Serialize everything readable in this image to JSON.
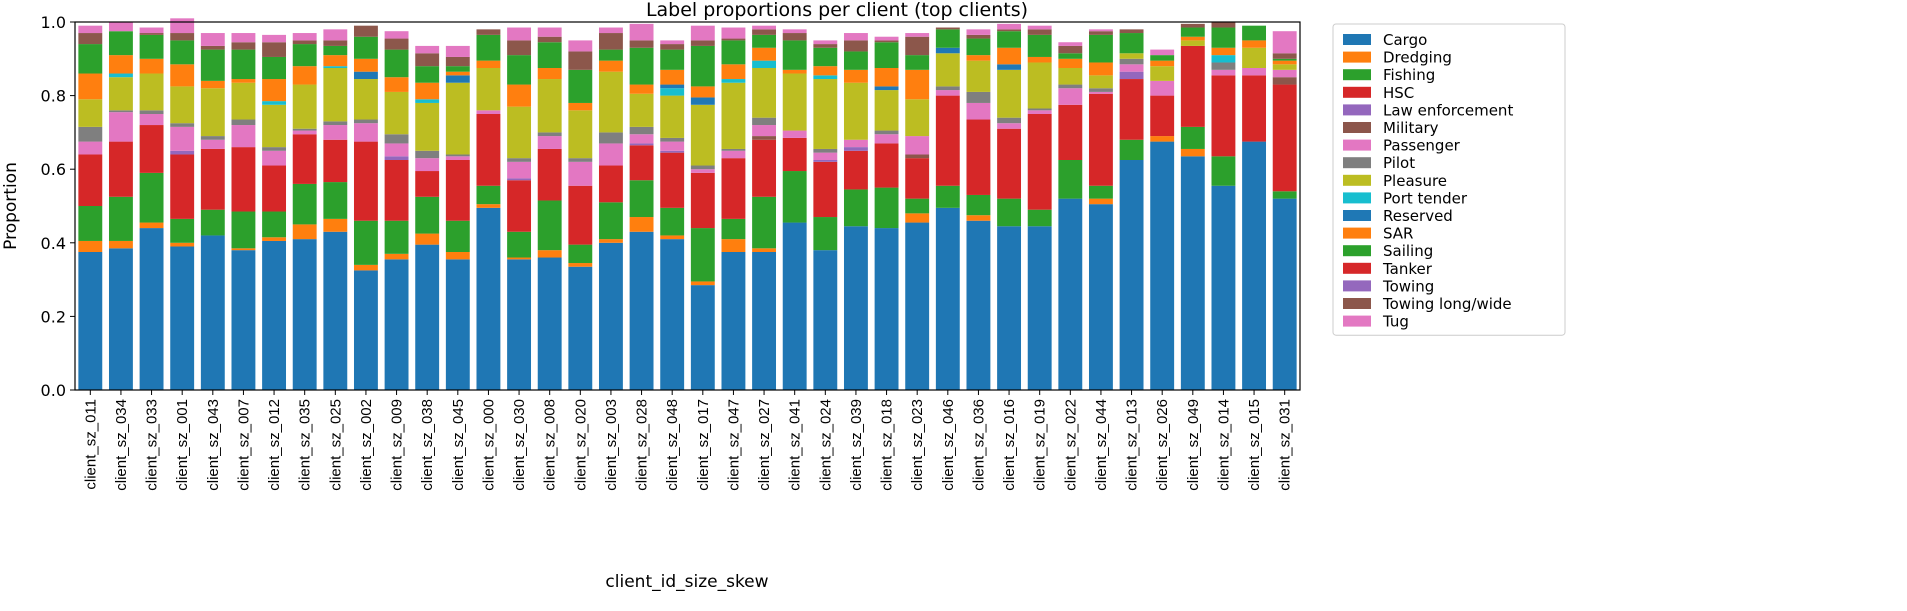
{
  "chart_data": {
    "type": "bar",
    "stacked": true,
    "title": "Label proportions per client (top clients)",
    "xlabel": "client_id_size_skew",
    "ylabel": "Proportion",
    "ylim": [
      0,
      1.0
    ],
    "yticks": [
      "0.0",
      "0.2",
      "0.4",
      "0.6",
      "0.8",
      "1.0"
    ],
    "legend_placement": "outside-right",
    "grid": false,
    "categories": [
      "client_sz_011",
      "client_sz_034",
      "client_sz_033",
      "client_sz_001",
      "client_sz_043",
      "client_sz_007",
      "client_sz_012",
      "client_sz_035",
      "client_sz_025",
      "client_sz_002",
      "client_sz_009",
      "client_sz_038",
      "client_sz_045",
      "client_sz_000",
      "client_sz_030",
      "client_sz_008",
      "client_sz_020",
      "client_sz_003",
      "client_sz_028",
      "client_sz_048",
      "client_sz_017",
      "client_sz_047",
      "client_sz_027",
      "client_sz_041",
      "client_sz_024",
      "client_sz_039",
      "client_sz_018",
      "client_sz_023",
      "client_sz_046",
      "client_sz_036",
      "client_sz_016",
      "client_sz_019",
      "client_sz_022",
      "client_sz_044",
      "client_sz_013",
      "client_sz_026",
      "client_sz_049",
      "client_sz_014",
      "client_sz_015",
      "client_sz_031"
    ],
    "series": [
      {
        "name": "Cargo",
        "color": "#1f77b4",
        "values": [
          0.375,
          0.385,
          0.44,
          0.39,
          0.42,
          0.38,
          0.405,
          0.41,
          0.43,
          0.325,
          0.355,
          0.395,
          0.355,
          0.495,
          0.355,
          0.36,
          0.335,
          0.4,
          0.43,
          0.41,
          0.285,
          0.375,
          0.375,
          0.455,
          0.38,
          0.445,
          0.44,
          0.455,
          0.495,
          0.46,
          0.445,
          0.445,
          0.52,
          0.505,
          0.625,
          0.675,
          0.635,
          0.555,
          0.675,
          0.52
        ]
      },
      {
        "name": "Dredging",
        "color": "#ff7f0e",
        "values": [
          0.03,
          0.02,
          0.015,
          0.01,
          0,
          0.005,
          0.01,
          0.04,
          0.035,
          0.015,
          0.015,
          0.03,
          0.02,
          0.01,
          0.005,
          0.02,
          0.01,
          0.01,
          0.04,
          0.01,
          0.01,
          0.035,
          0.01,
          0,
          0,
          0,
          0,
          0.025,
          0,
          0.015,
          0,
          0,
          0,
          0.015,
          0,
          0.015,
          0.02,
          0,
          0,
          0
        ]
      },
      {
        "name": "Fishing",
        "color": "#2ca02c",
        "values": [
          0.095,
          0.12,
          0.135,
          0.065,
          0.07,
          0.1,
          0.07,
          0.11,
          0.1,
          0.12,
          0.09,
          0.1,
          0.085,
          0.05,
          0.07,
          0.135,
          0.05,
          0.1,
          0.1,
          0.075,
          0.145,
          0.055,
          0.14,
          0.14,
          0.09,
          0.1,
          0.11,
          0.04,
          0.06,
          0.055,
          0.075,
          0.045,
          0.105,
          0.035,
          0.055,
          0,
          0.06,
          0.08,
          0,
          0.02
        ]
      },
      {
        "name": "HSC",
        "color": "#d62728",
        "values": [
          0.14,
          0.15,
          0.13,
          0.175,
          0.165,
          0.175,
          0.125,
          0.135,
          0.115,
          0.215,
          0.165,
          0.07,
          0.165,
          0.195,
          0.14,
          0.14,
          0.16,
          0.1,
          0.095,
          0.15,
          0.15,
          0.165,
          0.155,
          0.09,
          0.15,
          0.105,
          0.12,
          0.11,
          0.245,
          0.205,
          0.19,
          0.26,
          0.15,
          0.25,
          0.165,
          0.11,
          0.22,
          0.22,
          0.18,
          0.29
        ]
      },
      {
        "name": "Law enforcement",
        "color": "#9467bd",
        "values": [
          0,
          0,
          0,
          0.01,
          0,
          0,
          0,
          0,
          0,
          0,
          0.01,
          0,
          0,
          0,
          0.005,
          0,
          0,
          0,
          0.005,
          0.005,
          0,
          0,
          0,
          0,
          0.005,
          0.01,
          0,
          0,
          0,
          0,
          0,
          0,
          0,
          0,
          0.02,
          0,
          0,
          0,
          0,
          0
        ]
      },
      {
        "name": "Military",
        "color": "#8c564b",
        "values": [
          0,
          0,
          0,
          0,
          0,
          0,
          0,
          0,
          0,
          0,
          0,
          0,
          0,
          0,
          0,
          0,
          0,
          0,
          0,
          0,
          0,
          0,
          0.01,
          0,
          0,
          0,
          0,
          0.01,
          0,
          0,
          0,
          0,
          0,
          0,
          0,
          0,
          0,
          0,
          0,
          0.02
        ]
      },
      {
        "name": "Passenger",
        "color": "#e377c2",
        "values": [
          0.035,
          0.08,
          0.03,
          0.065,
          0.025,
          0.06,
          0.04,
          0.01,
          0.04,
          0.05,
          0.035,
          0.035,
          0.01,
          0.01,
          0.045,
          0.035,
          0.065,
          0.06,
          0.025,
          0.025,
          0.01,
          0.02,
          0.03,
          0.02,
          0.02,
          0.02,
          0.025,
          0.05,
          0.015,
          0.045,
          0.015,
          0.01,
          0.045,
          0.005,
          0.02,
          0.04,
          0,
          0.015,
          0.02,
          0.02
        ]
      },
      {
        "name": "Pilot",
        "color": "#7f7f7f",
        "values": [
          0.04,
          0.005,
          0.01,
          0.01,
          0.01,
          0.015,
          0.01,
          0.005,
          0.01,
          0.01,
          0.025,
          0.02,
          0.005,
          0,
          0.01,
          0.01,
          0.01,
          0.03,
          0.02,
          0.01,
          0.01,
          0.005,
          0.02,
          0,
          0.01,
          0,
          0.01,
          0,
          0.01,
          0.03,
          0.015,
          0.005,
          0.01,
          0.01,
          0.015,
          0,
          0,
          0.02,
          0,
          0
        ]
      },
      {
        "name": "Pleasure",
        "color": "#bcbd22",
        "values": [
          0.075,
          0.09,
          0.1,
          0.1,
          0.13,
          0.1,
          0.115,
          0.12,
          0.145,
          0.11,
          0.115,
          0.13,
          0.195,
          0.115,
          0.14,
          0.145,
          0.13,
          0.165,
          0.09,
          0.115,
          0.165,
          0.18,
          0.135,
          0.155,
          0.19,
          0.155,
          0.11,
          0.1,
          0.09,
          0.085,
          0.13,
          0.125,
          0.045,
          0.035,
          0.015,
          0.04,
          0.015,
          0,
          0.055,
          0.015
        ]
      },
      {
        "name": "Port tender",
        "color": "#17becf",
        "values": [
          0,
          0.01,
          0,
          0,
          0,
          0,
          0.01,
          0,
          0.005,
          0,
          0,
          0.01,
          0,
          0,
          0,
          0,
          0,
          0,
          0,
          0.02,
          0,
          0.01,
          0.02,
          0,
          0.01,
          0,
          0,
          0,
          0,
          0,
          0,
          0,
          0,
          0,
          0,
          0,
          0,
          0.02,
          0,
          0
        ]
      },
      {
        "name": "Reserved",
        "color": "#1f78b5",
        "values": [
          0,
          0,
          0,
          0,
          0,
          0,
          0,
          0,
          0,
          0.02,
          0,
          0,
          0.02,
          0,
          0,
          0,
          0,
          0,
          0,
          0.01,
          0.02,
          0,
          0,
          0,
          0,
          0,
          0.01,
          0,
          0.015,
          0,
          0.015,
          0,
          0,
          0,
          0,
          0,
          0,
          0,
          0,
          0
        ]
      },
      {
        "name": "SAR",
        "color": "#ff7f0f",
        "values": [
          0.07,
          0.05,
          0.04,
          0.06,
          0.02,
          0.01,
          0.06,
          0.05,
          0.03,
          0.035,
          0.04,
          0.045,
          0.01,
          0.02,
          0.06,
          0.03,
          0.02,
          0.03,
          0.025,
          0.04,
          0.03,
          0.04,
          0.035,
          0.01,
          0.025,
          0.035,
          0.05,
          0.08,
          0,
          0.015,
          0.045,
          0.015,
          0.025,
          0.035,
          0,
          0.015,
          0.01,
          0.02,
          0.02,
          0.01
        ]
      },
      {
        "name": "Sailing",
        "color": "#2ca12c",
        "values": [
          0.08,
          0.065,
          0.065,
          0.065,
          0.085,
          0.08,
          0.06,
          0.06,
          0.025,
          0.06,
          0.075,
          0.045,
          0.015,
          0.07,
          0.08,
          0.07,
          0.09,
          0.03,
          0.1,
          0.055,
          0.11,
          0.065,
          0.035,
          0.08,
          0.05,
          0.05,
          0.07,
          0.04,
          0.05,
          0.045,
          0.045,
          0.06,
          0.015,
          0.075,
          0.055,
          0.015,
          0.025,
          0.055,
          0.04,
          0.005
        ]
      },
      {
        "name": "Tanker",
        "color": "#d62729",
        "values": [
          0,
          0,
          0,
          0,
          0,
          0,
          0,
          0,
          0,
          0,
          0,
          0,
          0,
          0,
          0,
          0,
          0,
          0,
          0,
          0,
          0,
          0,
          0,
          0,
          0,
          0,
          0,
          0,
          0,
          0,
          0,
          0,
          0,
          0,
          0,
          0,
          0,
          0,
          0,
          0
        ]
      },
      {
        "name": "Towing",
        "color": "#9468bd",
        "values": [
          0,
          0,
          0,
          0,
          0,
          0,
          0,
          0,
          0,
          0,
          0,
          0,
          0,
          0,
          0,
          0,
          0,
          0,
          0,
          0,
          0,
          0,
          0,
          0,
          0,
          0,
          0,
          0,
          0,
          0,
          0,
          0,
          0,
          0,
          0,
          0,
          0,
          0,
          0,
          0
        ]
      },
      {
        "name": "Towing long/wide",
        "color": "#8c574b",
        "values": [
          0.03,
          0,
          0.005,
          0.02,
          0.01,
          0.02,
          0.04,
          0.01,
          0.015,
          0.03,
          0.03,
          0.035,
          0.025,
          0.015,
          0.04,
          0.015,
          0.05,
          0.045,
          0.02,
          0.015,
          0.015,
          0.005,
          0.015,
          0.02,
          0.01,
          0.03,
          0.005,
          0.05,
          0.005,
          0.01,
          0.005,
          0.015,
          0.02,
          0.01,
          0.01,
          0,
          0.01,
          0.015,
          0,
          0.015
        ]
      },
      {
        "name": "Tug",
        "color": "#e378c2",
        "values": [
          0.02,
          0.025,
          0.015,
          0.04,
          0.035,
          0.025,
          0.02,
          0.02,
          0.03,
          0,
          0.02,
          0.02,
          0.03,
          0,
          0.035,
          0.025,
          0.03,
          0.015,
          0.045,
          0.01,
          0.04,
          0.03,
          0.01,
          0.01,
          0.01,
          0.02,
          0.01,
          0.01,
          0,
          0.015,
          0.015,
          0.01,
          0.01,
          0.005,
          0,
          0.015,
          0,
          0,
          0,
          0.06
        ]
      }
    ]
  }
}
